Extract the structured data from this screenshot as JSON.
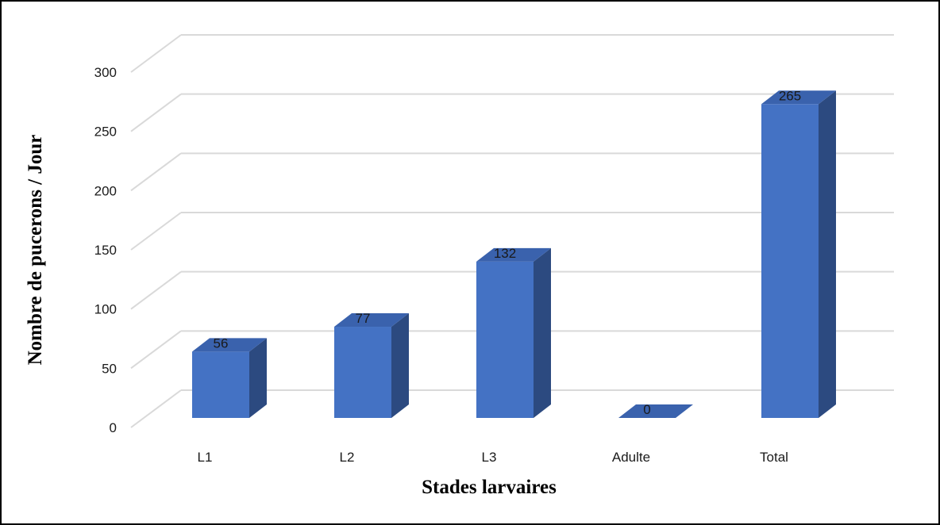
{
  "chart_data": {
    "type": "bar",
    "categories": [
      "L1",
      "L2",
      "L3",
      "Adulte",
      "Total"
    ],
    "values": [
      56,
      77,
      132,
      0,
      265
    ],
    "data_labels": [
      "56",
      "77",
      "132",
      "0",
      "265"
    ],
    "xlabel": "Stades larvaires",
    "ylabel": "Nombre de pucerons / Jour",
    "ylim": [
      0,
      300
    ],
    "y_ticks": [
      "0",
      "50",
      "100",
      "150",
      "200",
      "250",
      "300"
    ],
    "grid": true,
    "style": "3d",
    "colors": {
      "bar_front": "#4472c4",
      "bar_top": "#3a62ad",
      "bar_side": "#2c4a80",
      "gridline": "#d9d9d9",
      "border": "#000000"
    }
  }
}
